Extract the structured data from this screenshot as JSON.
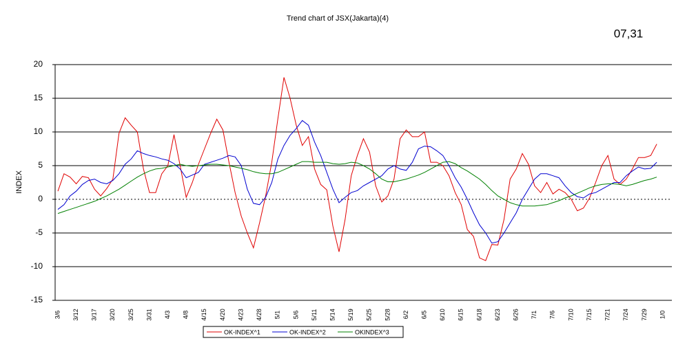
{
  "chart_data": {
    "type": "line",
    "title": "Trend chart of JSX(Jakarta)(4)",
    "annotation": "07,31",
    "y_label": "INDEX",
    "categories": [
      "3/6",
      null,
      null,
      "3/12",
      null,
      null,
      "3/17",
      null,
      null,
      "3/20",
      null,
      null,
      "3/25",
      null,
      null,
      "3/31",
      null,
      null,
      "4/3",
      null,
      null,
      "4/8",
      null,
      null,
      "4/15",
      null,
      null,
      "4/20",
      null,
      null,
      "4/23",
      null,
      null,
      "4/28",
      null,
      null,
      "5/1",
      null,
      null,
      "5/6",
      null,
      null,
      "5/11",
      null,
      null,
      "5/14",
      null,
      null,
      "5/19",
      null,
      null,
      "5/25",
      null,
      null,
      "5/28",
      null,
      null,
      "6/2",
      null,
      null,
      "6/5",
      null,
      null,
      "6/10",
      null,
      null,
      "6/15",
      null,
      null,
      "6/18",
      null,
      null,
      "6/23",
      null,
      null,
      "6/26",
      null,
      null,
      "7/1",
      null,
      null,
      "7/6",
      null,
      null,
      "7/10",
      null,
      null,
      "7/15",
      null,
      null,
      "7/21",
      null,
      null,
      "7/24",
      null,
      null,
      "7/29",
      null,
      null,
      "1/0"
    ],
    "series": [
      {
        "name": "OK-INDEX^1",
        "color": "#e00000",
        "values": [
          1.2,
          3.8,
          3.3,
          2.3,
          3.4,
          3.2,
          1.5,
          0.5,
          1.6,
          3.0,
          9.8,
          12.1,
          11.0,
          10.0,
          4.5,
          1.0,
          1.0,
          3.8,
          5.0,
          9.6,
          5.0,
          0.3,
          2.5,
          5.2,
          7.5,
          9.8,
          11.9,
          10.3,
          5.5,
          1.0,
          -2.5,
          -5.0,
          -7.2,
          -3.5,
          0.5,
          5.5,
          12.0,
          18.1,
          15.0,
          11.0,
          8.0,
          9.3,
          4.5,
          2.2,
          1.4,
          -4.0,
          -7.8,
          -3.0,
          3.5,
          6.5,
          9.0,
          7.0,
          2.0,
          -0.4,
          0.5,
          3.0,
          9.0,
          10.3,
          9.3,
          9.3,
          10.0,
          5.5,
          5.5,
          5.0,
          3.5,
          1.0,
          -0.8,
          -4.5,
          -5.5,
          -8.7,
          -9.1,
          -6.7,
          -6.8,
          -3.0,
          3.0,
          4.5,
          6.8,
          5.2,
          2.0,
          1.0,
          2.5,
          0.8,
          1.5,
          1.0,
          0.0,
          -1.7,
          -1.3,
          0.2,
          2.5,
          5.0,
          6.5,
          3.0,
          2.2,
          3.0,
          4.5,
          6.2,
          6.2,
          6.5,
          8.2,
          null
        ]
      },
      {
        "name": "OK-INDEX^2",
        "color": "#0000d0",
        "values": [
          -1.5,
          -0.8,
          0.5,
          1.2,
          2.2,
          2.8,
          3.0,
          2.5,
          2.3,
          2.8,
          3.8,
          5.2,
          6.0,
          7.2,
          6.8,
          6.5,
          6.3,
          6.0,
          5.8,
          5.3,
          4.5,
          3.2,
          3.6,
          4.0,
          5.2,
          5.5,
          5.8,
          6.1,
          6.5,
          6.3,
          5.0,
          1.5,
          -0.6,
          -0.8,
          0.3,
          2.5,
          6.0,
          8.0,
          9.5,
          10.5,
          11.7,
          11.0,
          8.5,
          6.5,
          4.0,
          1.5,
          -0.5,
          0.3,
          1.0,
          1.3,
          2.0,
          2.5,
          3.0,
          3.5,
          4.5,
          5.0,
          4.5,
          4.3,
          5.5,
          7.5,
          7.9,
          7.8,
          7.2,
          6.5,
          5.0,
          3.2,
          1.8,
          0.0,
          -2.0,
          -3.8,
          -5.0,
          -6.5,
          -6.3,
          -5.0,
          -3.5,
          -2.0,
          0.0,
          1.5,
          3.0,
          3.8,
          3.8,
          3.5,
          3.2,
          2.0,
          1.0,
          0.4,
          0.2,
          0.8,
          1.0,
          1.5,
          2.0,
          2.5,
          2.5,
          3.5,
          4.2,
          4.8,
          4.5,
          4.6,
          5.5,
          null
        ]
      },
      {
        "name": "OKINDEX^3",
        "color": "#008000",
        "values": [
          -2.1,
          -1.8,
          -1.5,
          -1.2,
          -0.9,
          -0.6,
          -0.3,
          0.1,
          0.5,
          1.0,
          1.5,
          2.1,
          2.7,
          3.3,
          3.8,
          4.2,
          4.5,
          4.6,
          4.8,
          5.0,
          5.2,
          5.0,
          4.9,
          5.0,
          5.1,
          5.2,
          5.2,
          5.1,
          5.0,
          4.8,
          4.6,
          4.4,
          4.1,
          3.9,
          3.8,
          3.8,
          4.0,
          4.4,
          4.8,
          5.2,
          5.6,
          5.6,
          5.5,
          5.5,
          5.5,
          5.3,
          5.2,
          5.3,
          5.5,
          5.4,
          5.0,
          4.5,
          3.8,
          3.0,
          2.6,
          2.6,
          2.8,
          3.0,
          3.3,
          3.6,
          4.0,
          4.5,
          5.0,
          5.5,
          5.6,
          5.3,
          4.7,
          4.2,
          3.6,
          3.0,
          2.2,
          1.3,
          0.5,
          0.0,
          -0.5,
          -0.8,
          -1.0,
          -1.0,
          -1.0,
          -0.9,
          -0.8,
          -0.5,
          -0.2,
          0.2,
          0.5,
          0.9,
          1.3,
          1.7,
          2.0,
          2.2,
          2.3,
          2.3,
          2.2,
          2.0,
          2.2,
          2.5,
          2.8,
          3.0,
          3.3,
          null
        ]
      }
    ],
    "ylim": [
      -15,
      20
    ],
    "yticks": [
      -15,
      -10,
      -5,
      0,
      5,
      10,
      15,
      20
    ],
    "grid": true,
    "legend": "bottom"
  }
}
